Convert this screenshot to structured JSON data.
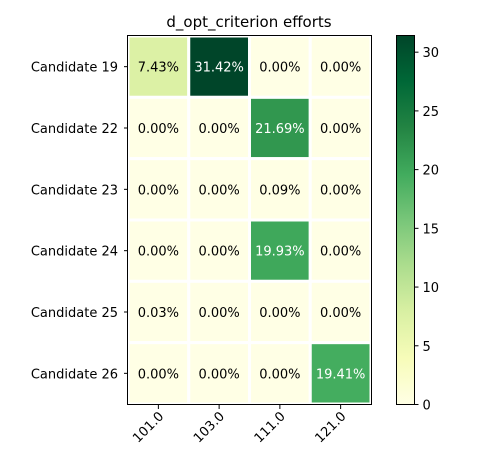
{
  "chart_data": {
    "type": "heatmap",
    "title": "d_opt_criterion efforts",
    "xlabel": "",
    "ylabel": "",
    "rows": [
      "Candidate 19",
      "Candidate 22",
      "Candidate 23",
      "Candidate 24",
      "Candidate 25",
      "Candidate 26"
    ],
    "columns": [
      "101.0",
      "103.0",
      "111.0",
      "121.0"
    ],
    "values": [
      [
        7.43,
        31.42,
        0.0,
        0.0
      ],
      [
        0.0,
        0.0,
        21.69,
        0.0
      ],
      [
        0.0,
        0.0,
        0.09,
        0.0
      ],
      [
        0.0,
        0.0,
        19.93,
        0.0
      ],
      [
        0.03,
        0.0,
        0.0,
        0.0
      ],
      [
        0.0,
        0.0,
        0.0,
        19.41
      ]
    ],
    "cell_labels": [
      [
        "7.43%",
        "31.42%",
        "0.00%",
        "0.00%"
      ],
      [
        "0.00%",
        "0.00%",
        "21.69%",
        "0.00%"
      ],
      [
        "0.00%",
        "0.00%",
        "0.09%",
        "0.00%"
      ],
      [
        "0.00%",
        "0.00%",
        "19.93%",
        "0.00%"
      ],
      [
        "0.03%",
        "0.00%",
        "0.00%",
        "0.00%"
      ],
      [
        "0.00%",
        "0.00%",
        "0.00%",
        "19.41%"
      ]
    ],
    "colormap": "YlGn",
    "colorbar": {
      "range": [
        0,
        31.42
      ],
      "ticks": [
        0,
        5,
        10,
        15,
        20,
        25,
        30
      ]
    },
    "grid": false,
    "legend": "none"
  }
}
